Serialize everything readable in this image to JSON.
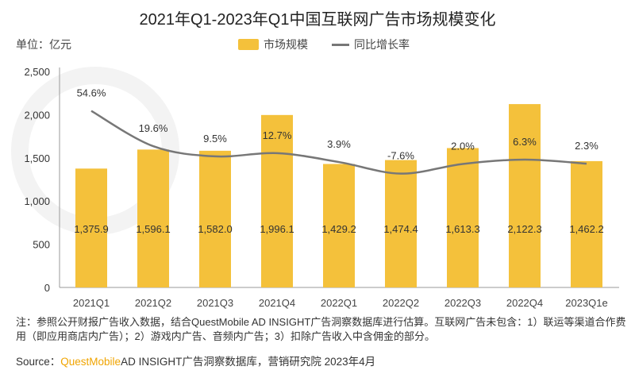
{
  "chart_data": {
    "type": "bar+line",
    "title": "2021年Q1-2023年Q1中国互联网广告市场规模变化",
    "unit_label": "单位：亿元",
    "categories": [
      "2021Q1",
      "2021Q2",
      "2021Q3",
      "2021Q4",
      "2022Q1",
      "2022Q2",
      "2022Q3",
      "2022Q4",
      "2023Q1e"
    ],
    "series": [
      {
        "name": "市场规模",
        "type": "bar",
        "color": "#f4c13b",
        "values": [
          1375.9,
          1596.1,
          1582.0,
          1996.1,
          1429.2,
          1474.4,
          1613.3,
          2122.3,
          1462.2
        ],
        "labels": [
          "1,375.9",
          "1,596.1",
          "1,582.0",
          "1,996.1",
          "1,429.2",
          "1,474.4",
          "1,613.3",
          "2,122.3",
          "1,462.2"
        ]
      },
      {
        "name": "同比增长率",
        "type": "line",
        "color": "#777777",
        "values": [
          54.6,
          19.6,
          9.5,
          12.7,
          3.9,
          -7.6,
          2.0,
          6.3,
          2.3
        ],
        "labels": [
          "54.6%",
          "19.6%",
          "9.5%",
          "12.7%",
          "3.9%",
          "-7.6%",
          "2.0%",
          "6.3%",
          "2.3%"
        ]
      }
    ],
    "ylim": [
      0,
      2500
    ],
    "yticks": [
      0,
      500,
      1000,
      1500,
      2000,
      2500
    ],
    "ytick_labels": [
      "0",
      "500",
      "1,000",
      "1,500",
      "2,000",
      "2,500"
    ],
    "legend": "top-center"
  },
  "note": "注：参照公开财报广告收入数据，结合QuestMobile AD INSIGHT广告洞察数据库进行估算。互联网广告未包含：1）联运等渠道合作费用（即应用商店内广告）；2）游戏内广告、音频内广告；3）扣除广告收入中含佣金的部分。",
  "source": {
    "prefix": "Source：",
    "brand": "QuestMobile",
    "rest": "AD INSIGHT广告洞察数据库，营销研究院 2023年4月"
  },
  "watermark": "QUESTMOBILE"
}
